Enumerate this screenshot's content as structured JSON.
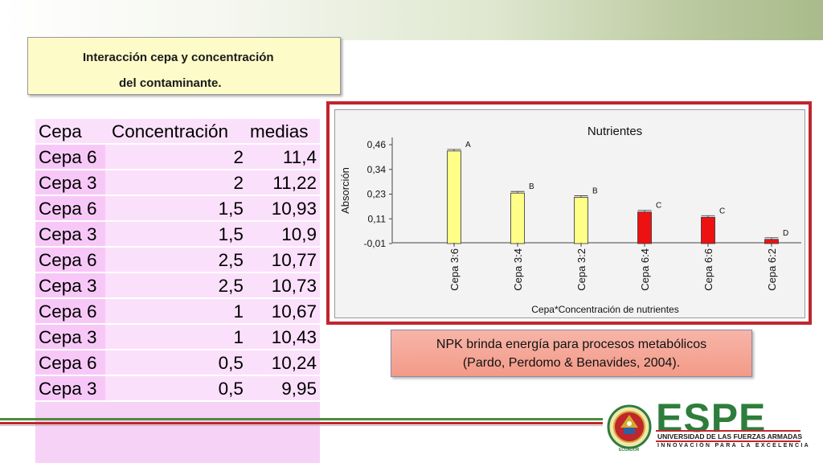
{
  "title": {
    "line1": "Interacción cepa y concentración",
    "line2": "del contaminante."
  },
  "table": {
    "headers": [
      "Cepa",
      "Concentración",
      "medias"
    ],
    "rows": [
      [
        "Cepa 6",
        "2",
        "11,4"
      ],
      [
        "Cepa 3",
        "2",
        "11,22"
      ],
      [
        "Cepa 6",
        "1,5",
        "10,93"
      ],
      [
        "Cepa 3",
        "1,5",
        "10,9"
      ],
      [
        "Cepa 6",
        "2,5",
        "10,77"
      ],
      [
        "Cepa 3",
        "2,5",
        "10,73"
      ],
      [
        "Cepa 6",
        "1",
        "10,67"
      ],
      [
        "Cepa 3",
        "1",
        "10,43"
      ],
      [
        "Cepa 6",
        "0,5",
        "10,24"
      ],
      [
        "Cepa 3",
        "0,5",
        "9,95"
      ]
    ]
  },
  "chart_data": {
    "type": "bar",
    "title": "Nutrientes",
    "xlabel": "Cepa*Concentración de nutrientes",
    "ylabel": "Absorción",
    "yticks": [
      "0,46",
      "0,34",
      "0,23",
      "0,11",
      "-0,01"
    ],
    "ylim": [
      -0.01,
      0.46
    ],
    "categories": [
      "Cepa 3:6",
      "Cepa 3:4",
      "Cepa 3:2",
      "Cepa 6:4",
      "Cepa 6:6",
      "Cepa 6:2"
    ],
    "values": [
      0.43,
      0.23,
      0.21,
      0.14,
      0.115,
      0.01
    ],
    "letters": [
      "A",
      "B",
      "B",
      "C",
      "C",
      "D"
    ],
    "colors": [
      "#ffff88",
      "#ffff88",
      "#ffff88",
      "#ee1111",
      "#ee1111",
      "#ee1111"
    ]
  },
  "note": {
    "line1": "NPK brinda energía para procesos metabólicos",
    "line2": "(Pardo, Perdomo & Benavides, 2004)."
  },
  "logo": {
    "name": "ESPE",
    "subtitle": "UNIVERSIDAD DE LAS FUERZAS ARMADAS",
    "motto": "INNOVACIÓN PARA LA EXCELENCIA",
    "seal_text": "ECUADOR"
  }
}
